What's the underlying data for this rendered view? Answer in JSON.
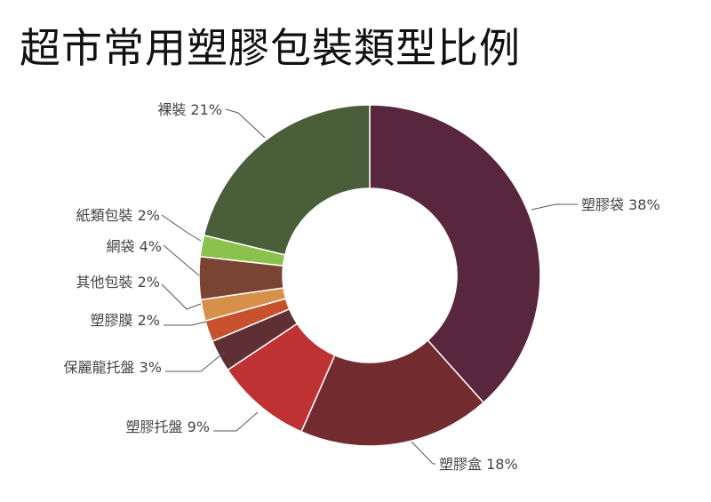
{
  "chart_data": {
    "type": "pie",
    "title": "超市常用塑膠包裝類型比例",
    "slices": [
      {
        "label": "塑膠袋 38%",
        "value": 38,
        "color": "#58263d"
      },
      {
        "label": "塑膠盒 18%",
        "value": 18,
        "color": "#722c2f"
      },
      {
        "label": "塑膠托盤 9%",
        "value": 9,
        "color": "#bf3234"
      },
      {
        "label": "保麗龍托盤 3%",
        "value": 3,
        "color": "#5e3033"
      },
      {
        "label": "塑膠膜 2%",
        "value": 2,
        "color": "#c7512d"
      },
      {
        "label": "其他包裝 2%",
        "value": 2,
        "color": "#d6904a"
      },
      {
        "label": "網袋 4%",
        "value": 4,
        "color": "#7a4432"
      },
      {
        "label": "紙類包裝 2%",
        "value": 2,
        "color": "#8bc24e"
      },
      {
        "label": "裸裝 21%",
        "value": 21,
        "color": "#4a5e3a"
      }
    ],
    "donut": true,
    "legend": "none"
  }
}
